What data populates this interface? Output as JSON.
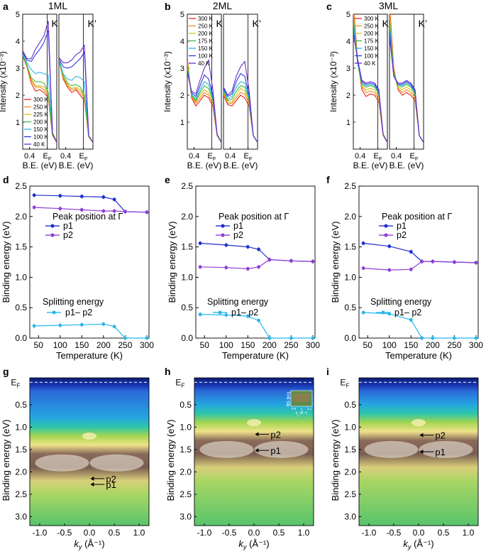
{
  "figure": {
    "panel_letters": [
      "a",
      "b",
      "c",
      "d",
      "e",
      "f",
      "g",
      "h",
      "i"
    ]
  },
  "chart_data": [
    {
      "id": "a",
      "type": "line",
      "title": "1ML",
      "subpanels": [
        "K",
        "K’"
      ],
      "ylabel": "Intensity (x10⁻³)",
      "xlabel": "B.E. (eV)",
      "xticks": [
        "0.4",
        "E_F"
      ],
      "ylim": [
        0,
        5
      ],
      "yticks": [
        "1",
        "2",
        "3",
        "4",
        "5"
      ],
      "legend": [
        "300 K",
        "250 K",
        "225 K",
        "200 K",
        "150 K",
        "100 K",
        "40 K"
      ],
      "colors": [
        "#e8261c",
        "#f28c1e",
        "#d8c21a",
        "#3cba3a",
        "#27b6e4",
        "#2a3ad8",
        "#6a2fc8"
      ],
      "series": [
        {
          "name": "300 K",
          "K": [
            3.45,
            3.05,
            2.45,
            2.15,
            2.2,
            2.1,
            1.9,
            0.5,
            0.25
          ],
          "Kp": [
            3.3,
            2.6,
            2.3,
            2.1,
            2.2,
            2.0,
            1.8,
            0.45,
            0.25
          ]
        },
        {
          "name": "250 K",
          "K": [
            3.5,
            3.1,
            2.55,
            2.3,
            2.3,
            2.2,
            2.0,
            0.5,
            0.25
          ],
          "Kp": [
            3.3,
            2.65,
            2.35,
            2.2,
            2.25,
            2.1,
            1.9,
            0.45,
            0.25
          ]
        },
        {
          "name": "225 K",
          "K": [
            3.5,
            3.1,
            2.6,
            2.35,
            2.35,
            2.3,
            2.05,
            0.55,
            0.25
          ],
          "Kp": [
            3.3,
            2.7,
            2.4,
            2.25,
            2.3,
            2.2,
            1.95,
            0.45,
            0.25
          ]
        },
        {
          "name": "200 K",
          "K": [
            3.5,
            3.1,
            2.65,
            2.5,
            2.5,
            2.45,
            2.1,
            0.55,
            0.25
          ],
          "Kp": [
            3.3,
            2.75,
            2.45,
            2.35,
            2.4,
            2.3,
            2.0,
            0.5,
            0.25
          ]
        },
        {
          "name": "150 K",
          "K": [
            3.55,
            3.2,
            2.95,
            2.8,
            2.85,
            2.8,
            2.75,
            0.6,
            0.25
          ],
          "Kp": [
            3.35,
            2.8,
            2.6,
            2.55,
            2.7,
            2.65,
            2.5,
            0.5,
            0.25
          ]
        },
        {
          "name": "100 K",
          "K": [
            3.6,
            3.3,
            3.25,
            3.5,
            3.7,
            3.95,
            4.4,
            0.6,
            0.25
          ],
          "Kp": [
            3.35,
            3.05,
            3.0,
            3.05,
            3.2,
            3.35,
            3.6,
            0.5,
            0.25
          ]
        },
        {
          "name": "40 K",
          "K": [
            3.65,
            3.35,
            3.35,
            3.7,
            3.95,
            4.2,
            4.75,
            0.6,
            0.25
          ],
          "Kp": [
            3.4,
            3.2,
            3.2,
            3.3,
            3.5,
            3.6,
            3.85,
            0.5,
            0.25
          ]
        }
      ]
    },
    {
      "id": "b",
      "type": "line",
      "title": "2ML",
      "subpanels": [
        "K",
        "K’"
      ],
      "ylabel": "Intensity (x10⁻³)",
      "xlabel": "B.E. (eV)",
      "xticks": [
        "0.4",
        "E_F"
      ],
      "ylim": [
        0,
        5
      ],
      "yticks": [
        "1",
        "2",
        "3",
        "4",
        "5"
      ],
      "legend": [
        "300 K",
        "250 K",
        "200 K",
        "175 K",
        "150 K",
        "100 K",
        "40 K"
      ],
      "colors": [
        "#e8261c",
        "#f28c1e",
        "#d8c21a",
        "#3cba3a",
        "#27b6e4",
        "#2a3ad8",
        "#6a2fc8"
      ],
      "series": [
        {
          "name": "300 K",
          "K": [
            3.4,
            1.9,
            1.6,
            1.8,
            2.0,
            1.9,
            1.6,
            0.5,
            0.25
          ],
          "Kp": [
            2.0,
            1.65,
            1.6,
            1.8,
            2.0,
            1.9,
            1.6,
            0.5,
            0.25
          ]
        },
        {
          "name": "250 K",
          "K": [
            3.3,
            1.95,
            1.7,
            1.9,
            2.1,
            2.0,
            1.7,
            0.5,
            0.25
          ],
          "Kp": [
            2.05,
            1.7,
            1.7,
            1.9,
            2.1,
            2.05,
            1.7,
            0.5,
            0.25
          ]
        },
        {
          "name": "200 K",
          "K": [
            3.2,
            2.0,
            1.75,
            2.0,
            2.2,
            2.1,
            1.8,
            0.5,
            0.25
          ],
          "Kp": [
            2.1,
            1.75,
            1.75,
            2.0,
            2.25,
            2.15,
            1.8,
            0.5,
            0.25
          ]
        },
        {
          "name": "175 K",
          "K": [
            3.1,
            2.0,
            1.8,
            2.1,
            2.35,
            2.25,
            1.85,
            0.55,
            0.25
          ],
          "Kp": [
            2.15,
            1.8,
            1.85,
            2.15,
            2.35,
            2.3,
            1.85,
            0.5,
            0.25
          ]
        },
        {
          "name": "150 K",
          "K": [
            3.0,
            2.05,
            1.85,
            2.2,
            2.5,
            2.4,
            1.9,
            0.55,
            0.25
          ],
          "Kp": [
            2.2,
            1.85,
            1.95,
            2.3,
            2.5,
            2.45,
            1.9,
            0.5,
            0.25
          ]
        },
        {
          "name": "100 K",
          "K": [
            2.9,
            2.1,
            1.95,
            2.35,
            2.75,
            2.6,
            2.0,
            0.55,
            0.25
          ],
          "Kp": [
            2.25,
            1.95,
            2.05,
            2.5,
            2.8,
            2.7,
            2.0,
            0.5,
            0.25
          ]
        },
        {
          "name": "40 K",
          "K": [
            2.85,
            2.15,
            2.05,
            2.55,
            3.0,
            3.3,
            2.2,
            0.55,
            0.25
          ],
          "Kp": [
            2.3,
            2.0,
            2.15,
            2.7,
            3.05,
            3.25,
            2.2,
            0.5,
            0.25
          ]
        }
      ]
    },
    {
      "id": "c",
      "type": "line",
      "title": "3ML",
      "subpanels": [
        "K",
        "K’"
      ],
      "ylabel": "Intensity (x10⁻³)",
      "xlabel": "B.E. (eV)",
      "xticks": [
        "0.4",
        "E_F"
      ],
      "ylim": [
        0,
        5
      ],
      "yticks": [
        "1",
        "2",
        "3",
        "4",
        "5"
      ],
      "legend": [
        "300 K",
        "250 K",
        "200 K",
        "175 K",
        "150 K",
        "100 K",
        "40 K"
      ],
      "colors": [
        "#e8261c",
        "#f28c1e",
        "#d8c21a",
        "#3cba3a",
        "#27b6e4",
        "#2a3ad8",
        "#6a2fc8"
      ],
      "series": [
        {
          "name": "300 K",
          "K": [
            5.4,
            3.3,
            2.2,
            1.95,
            2.05,
            2.0,
            1.75,
            0.5,
            0.25
          ],
          "Kp": [
            5.4,
            3.0,
            2.2,
            2.0,
            2.1,
            2.0,
            1.8,
            0.5,
            0.25
          ]
        },
        {
          "name": "250 K",
          "K": [
            5.2,
            3.3,
            2.3,
            2.1,
            2.15,
            2.1,
            1.85,
            0.5,
            0.25
          ],
          "Kp": [
            5.2,
            2.9,
            2.25,
            2.1,
            2.2,
            2.1,
            1.9,
            0.5,
            0.25
          ]
        },
        {
          "name": "200 K",
          "K": [
            5.0,
            3.2,
            2.35,
            2.2,
            2.25,
            2.2,
            1.95,
            0.5,
            0.25
          ],
          "Kp": [
            5.0,
            2.85,
            2.3,
            2.2,
            2.3,
            2.2,
            2.0,
            0.5,
            0.25
          ]
        },
        {
          "name": "175 K",
          "K": [
            4.9,
            3.2,
            2.4,
            2.3,
            2.35,
            2.3,
            2.05,
            0.55,
            0.25
          ],
          "Kp": [
            4.8,
            2.8,
            2.35,
            2.3,
            2.4,
            2.3,
            2.05,
            0.5,
            0.25
          ]
        },
        {
          "name": "150 K",
          "K": [
            4.7,
            3.2,
            2.45,
            2.35,
            2.4,
            2.35,
            2.1,
            0.55,
            0.25
          ],
          "Kp": [
            4.6,
            2.75,
            2.4,
            2.35,
            2.45,
            2.35,
            2.1,
            0.5,
            0.25
          ]
        },
        {
          "name": "100 K",
          "K": [
            4.4,
            3.3,
            2.5,
            2.4,
            2.45,
            2.4,
            2.15,
            0.55,
            0.25
          ],
          "Kp": [
            4.3,
            2.7,
            2.4,
            2.4,
            2.5,
            2.4,
            2.15,
            0.5,
            0.25
          ]
        },
        {
          "name": "40 K",
          "K": [
            4.3,
            3.35,
            2.55,
            2.45,
            2.5,
            2.45,
            2.2,
            0.55,
            0.25
          ],
          "Kp": [
            4.2,
            2.7,
            2.45,
            2.45,
            2.55,
            2.45,
            2.2,
            0.5,
            0.25
          ]
        }
      ]
    },
    {
      "id": "d",
      "type": "line",
      "xlabel": "Temperature (K)",
      "ylabel": "Binding energy (eV)",
      "xlim": [
        30,
        305
      ],
      "ylim": [
        0,
        2.5
      ],
      "xticks": [
        50,
        100,
        150,
        200,
        250,
        300
      ],
      "yticks": [
        0.0,
        0.5,
        1.0,
        1.5,
        2.0,
        2.5
      ],
      "peak_title": "Peak position at Γ",
      "split_title": "Splitting energy",
      "series": [
        {
          "name": "p1",
          "color": "#1f2fd0",
          "x": [
            40,
            100,
            150,
            200,
            225,
            250,
            300
          ],
          "y": [
            2.35,
            2.34,
            2.33,
            2.32,
            2.28,
            2.08,
            2.07
          ]
        },
        {
          "name": "p2",
          "color": "#8e3fd6",
          "x": [
            40,
            100,
            150,
            200,
            225,
            250,
            300
          ],
          "y": [
            2.15,
            2.13,
            2.11,
            2.09,
            2.09,
            2.08,
            2.07
          ]
        },
        {
          "name": "p1– p2",
          "color": "#29b7ea",
          "x": [
            40,
            100,
            150,
            200,
            225,
            250,
            300
          ],
          "y": [
            0.2,
            0.21,
            0.22,
            0.23,
            0.19,
            0.0,
            0.0
          ]
        }
      ]
    },
    {
      "id": "e",
      "type": "line",
      "xlabel": "Temperature (K)",
      "ylabel": "Binding energy (eV)",
      "xlim": [
        30,
        305
      ],
      "ylim": [
        0,
        2.5
      ],
      "xticks": [
        50,
        100,
        150,
        200,
        250,
        300
      ],
      "yticks": [
        0.0,
        0.5,
        1.0,
        1.5,
        2.0,
        2.5
      ],
      "peak_title": "Peak position at Γ",
      "split_title": "Splitting energy",
      "series": [
        {
          "name": "p1",
          "color": "#1f2fd0",
          "x": [
            40,
            100,
            150,
            175,
            200,
            250,
            300
          ],
          "y": [
            1.56,
            1.53,
            1.5,
            1.46,
            1.29,
            1.27,
            1.26
          ]
        },
        {
          "name": "p2",
          "color": "#8e3fd6",
          "x": [
            40,
            100,
            150,
            175,
            200,
            250,
            300
          ],
          "y": [
            1.17,
            1.16,
            1.14,
            1.17,
            1.29,
            1.27,
            1.26
          ]
        },
        {
          "name": "p1– p2",
          "color": "#29b7ea",
          "x": [
            40,
            100,
            150,
            175,
            200,
            250,
            300
          ],
          "y": [
            0.39,
            0.38,
            0.36,
            0.29,
            0.0,
            0.0,
            0.0
          ]
        }
      ]
    },
    {
      "id": "f",
      "type": "line",
      "xlabel": "Temperature (K)",
      "ylabel": "Binding energy (eV)",
      "xlim": [
        30,
        305
      ],
      "ylim": [
        0,
        2.5
      ],
      "xticks": [
        50,
        100,
        150,
        200,
        250,
        300
      ],
      "yticks": [
        0.0,
        0.5,
        1.0,
        1.5,
        2.0,
        2.5
      ],
      "peak_title": "Peak position at Γ",
      "split_title": "Splitting energy",
      "series": [
        {
          "name": "p1",
          "color": "#1f2fd0",
          "x": [
            40,
            100,
            150,
            175,
            200,
            250,
            300
          ],
          "y": [
            1.56,
            1.51,
            1.42,
            1.26,
            1.26,
            1.25,
            1.24
          ]
        },
        {
          "name": "p2",
          "color": "#8e3fd6",
          "x": [
            40,
            100,
            150,
            175,
            200,
            250,
            300
          ],
          "y": [
            1.15,
            1.12,
            1.13,
            1.26,
            1.26,
            1.25,
            1.24
          ]
        },
        {
          "name": "p1– p2",
          "color": "#29b7ea",
          "x": [
            40,
            100,
            150,
            175,
            200,
            250,
            300
          ],
          "y": [
            0.42,
            0.4,
            0.3,
            0.0,
            0.0,
            0.0,
            0.0
          ]
        }
      ]
    },
    {
      "id": "g",
      "type": "heatmap",
      "xlabel": "k_y (Å⁻¹)",
      "ylabel": "Binding energy (eV)",
      "xlim": [
        -1.2,
        1.2
      ],
      "ylim": [
        3.2,
        -0.1
      ],
      "xticks": [
        -1.0,
        -0.5,
        0.0,
        0.5,
        1.0
      ],
      "yticks": [
        0.5,
        1.0,
        1.5,
        2.0,
        2.5,
        3.0
      ],
      "ef_label": "E_F",
      "annotations": [
        {
          "label": "p2",
          "k": 0.02,
          "be": 2.15
        },
        {
          "label": "p1",
          "k": 0.02,
          "be": 2.28
        }
      ],
      "band_top_be": 1.25
    },
    {
      "id": "h",
      "type": "heatmap",
      "xlabel": "k_y (Å⁻¹)",
      "ylabel": "Binding energy (eV)",
      "xlim": [
        -1.2,
        1.2
      ],
      "ylim": [
        3.2,
        -0.1
      ],
      "xticks": [
        -1.0,
        -0.5,
        0.0,
        0.5,
        1.0
      ],
      "yticks": [
        0.5,
        1.0,
        1.5,
        2.0,
        2.5,
        3.0
      ],
      "ef_label": "E_F",
      "annotations": [
        {
          "label": "p2",
          "k": 0.02,
          "be": 1.16
        },
        {
          "label": "p1",
          "k": 0.02,
          "be": 1.52
        }
      ],
      "inset": {
        "ylabel": "B.E. (eV)",
        "xlabel": "k_y (Å⁻¹)",
        "xticks": [
          "0.9",
          "1",
          "1.1"
        ],
        "yticks": [
          "0",
          "0.2",
          "0.4"
        ]
      },
      "band_top_be": 0.95
    },
    {
      "id": "i",
      "type": "heatmap",
      "xlabel": "k_y (Å⁻¹)",
      "ylabel": "Binding energy (eV)",
      "xlim": [
        -1.2,
        1.2
      ],
      "ylim": [
        3.2,
        -0.1
      ],
      "xticks": [
        -1.0,
        -0.5,
        0.0,
        0.5,
        1.0
      ],
      "yticks": [
        0.5,
        1.0,
        1.5,
        2.0,
        2.5,
        3.0
      ],
      "ef_label": "E_F",
      "annotations": [
        {
          "label": "p2",
          "k": 0.02,
          "be": 1.18
        },
        {
          "label": "p1",
          "k": 0.02,
          "be": 1.55
        }
      ],
      "band_top_be": 0.95
    }
  ]
}
